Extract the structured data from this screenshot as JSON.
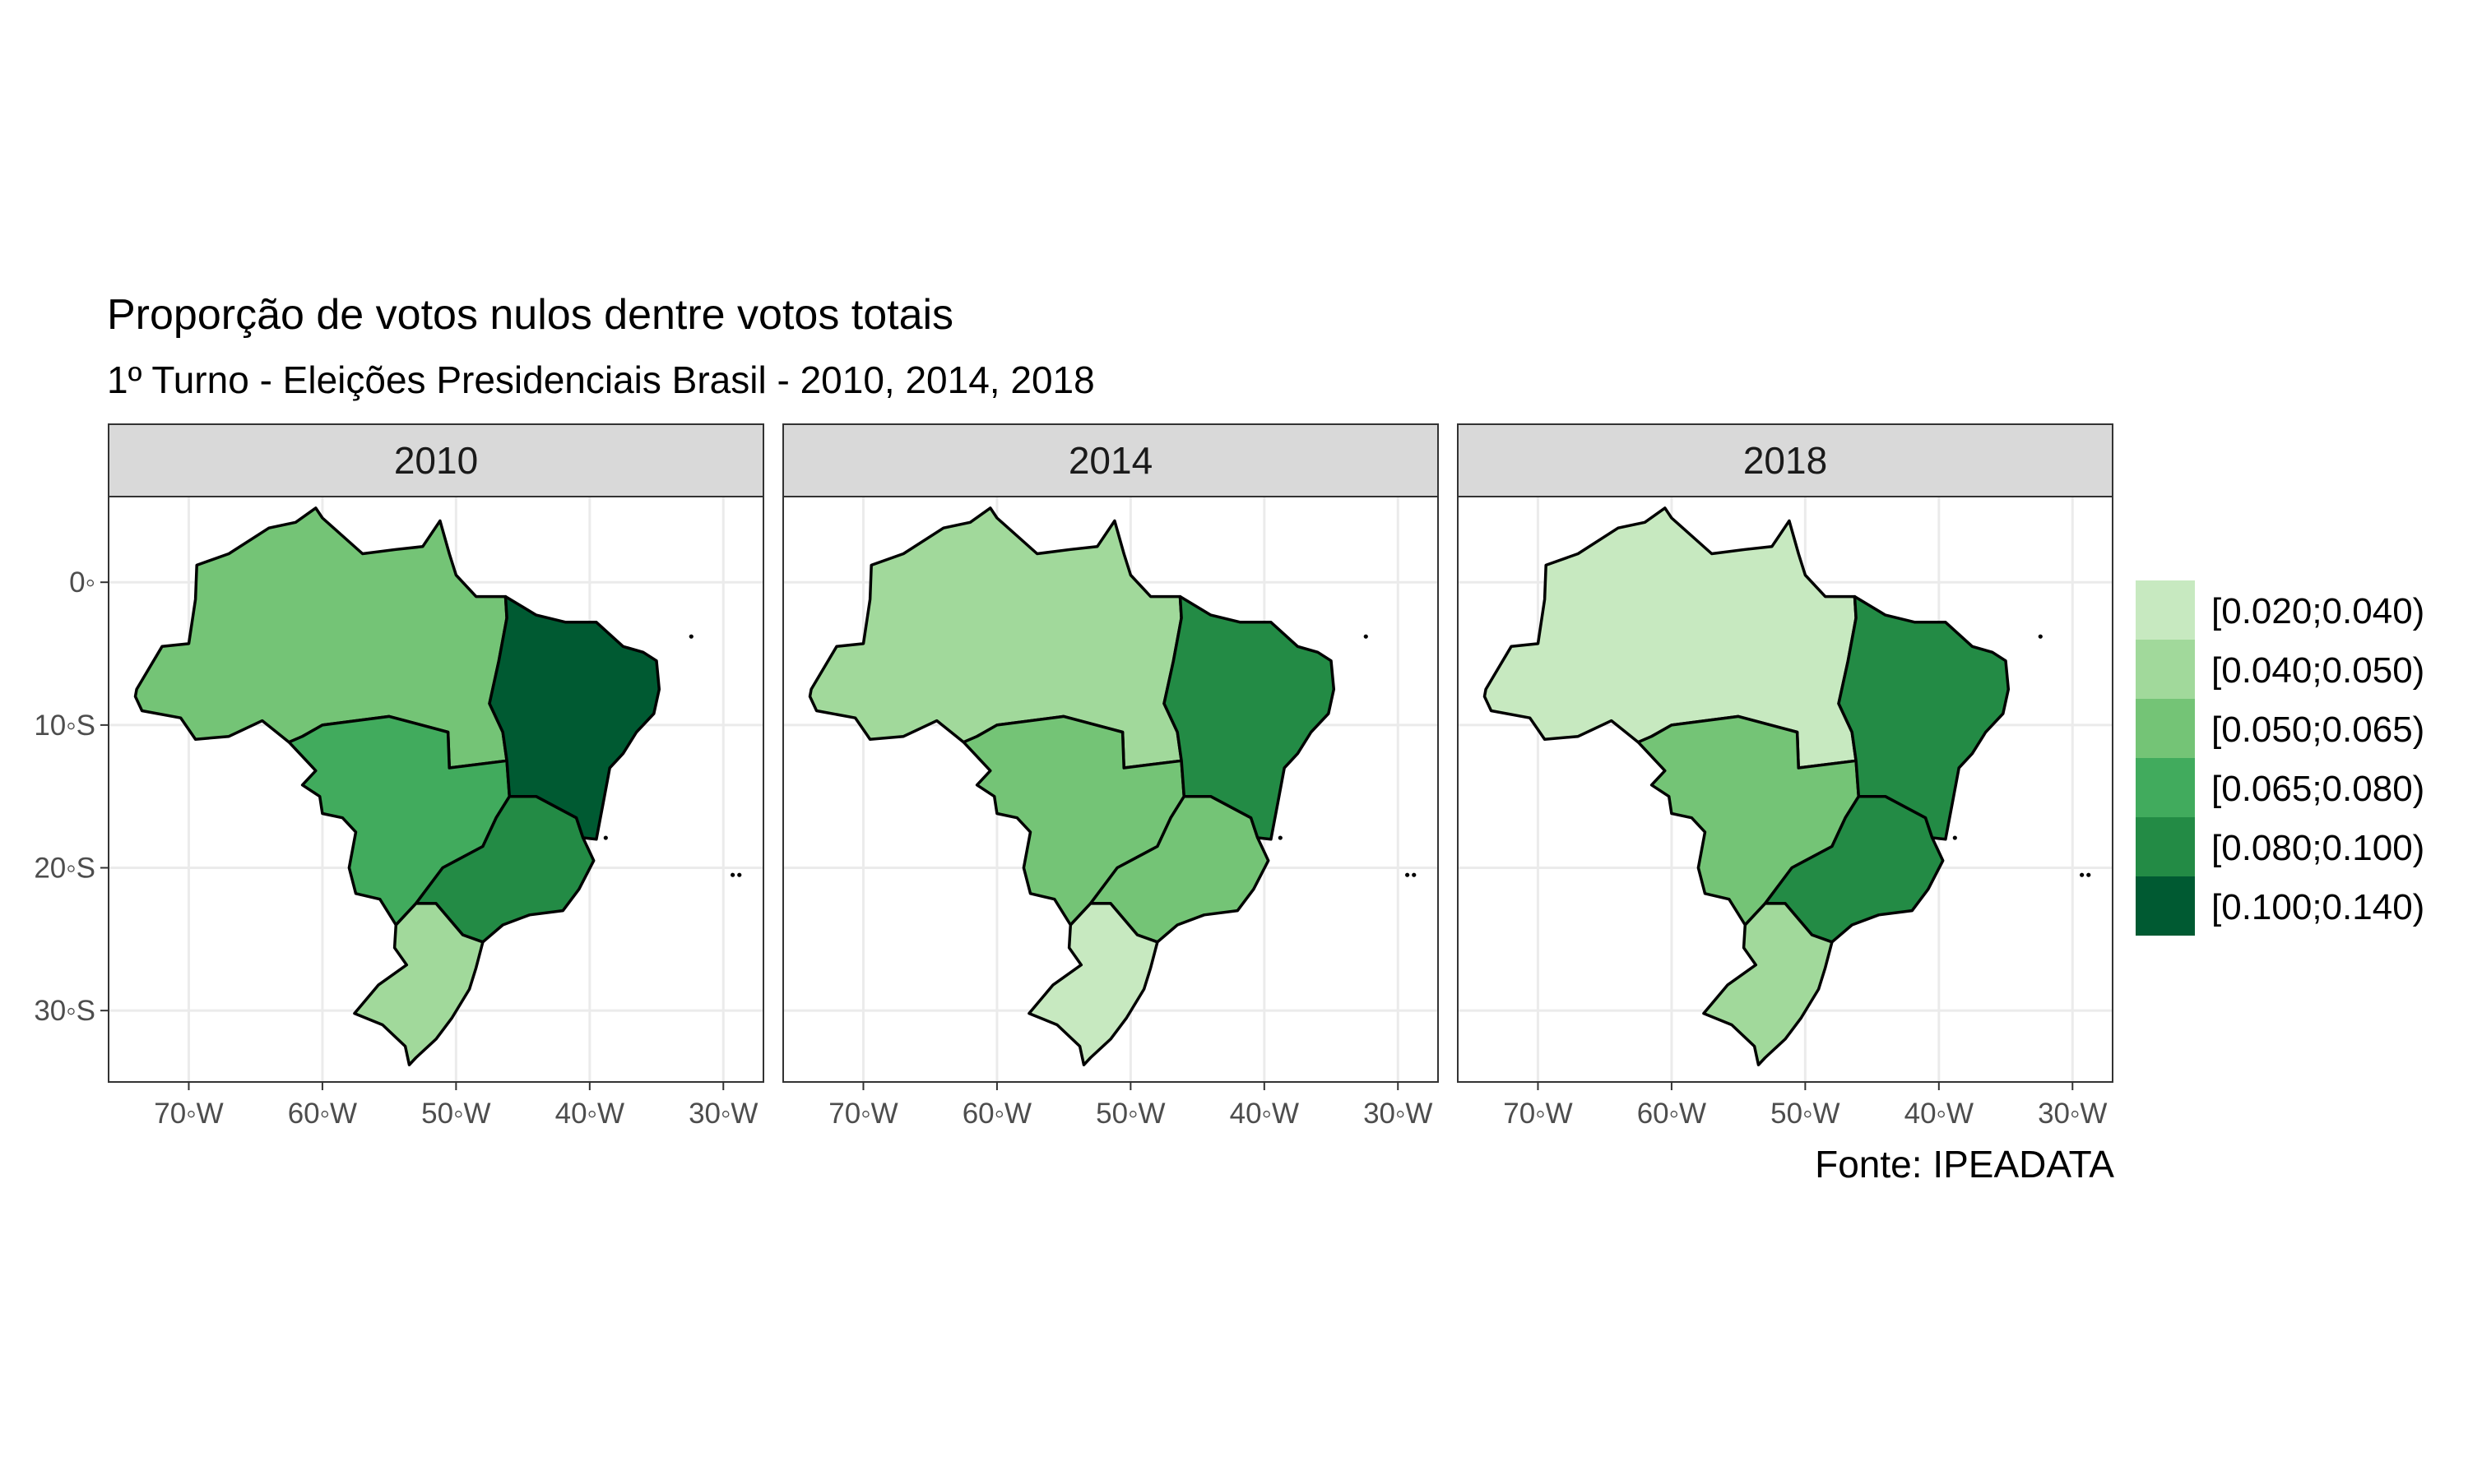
{
  "title": "Proporção de votos nulos dentre votos totais",
  "subtitle": "1º Turno - Eleições Presidenciais Brasil - 2010, 2014, 2018",
  "caption": "Fonte: IPEADATA",
  "facets": [
    {
      "label": "2010",
      "fills": {
        "N": 2,
        "NE": 5,
        "CO": 3,
        "SE": 4,
        "S": 1
      }
    },
    {
      "label": "2014",
      "fills": {
        "N": 1,
        "NE": 4,
        "CO": 2,
        "SE": 2,
        "S": 0
      }
    },
    {
      "label": "2018",
      "fills": {
        "N": 0,
        "NE": 4,
        "CO": 2,
        "SE": 4,
        "S": 1
      }
    }
  ],
  "x_ticks": [
    {
      "value": -70,
      "label": "70◦W"
    },
    {
      "value": -60,
      "label": "60◦W"
    },
    {
      "value": -50,
      "label": "50◦W"
    },
    {
      "value": -40,
      "label": "40◦W"
    },
    {
      "value": -30,
      "label": "30◦W"
    }
  ],
  "y_ticks": [
    {
      "value": 0,
      "label": "0◦"
    },
    {
      "value": -10,
      "label": "10◦S"
    },
    {
      "value": -20,
      "label": "20◦S"
    },
    {
      "value": -30,
      "label": "30◦S"
    }
  ],
  "legend": [
    {
      "label": "[0.020;0.040)",
      "color": "#c7e9c0"
    },
    {
      "label": "[0.040;0.050)",
      "color": "#a1d99b"
    },
    {
      "label": "[0.050;0.065)",
      "color": "#74c476"
    },
    {
      "label": "[0.065;0.080)",
      "color": "#41ab5d"
    },
    {
      "label": "[0.080;0.100)",
      "color": "#238b45"
    },
    {
      "label": "[0.100;0.140)",
      "color": "#005a32"
    }
  ],
  "chart_data": {
    "type": "choropleth",
    "xlim": [
      -76,
      -27
    ],
    "ylim": [
      -35,
      6
    ]
  }
}
